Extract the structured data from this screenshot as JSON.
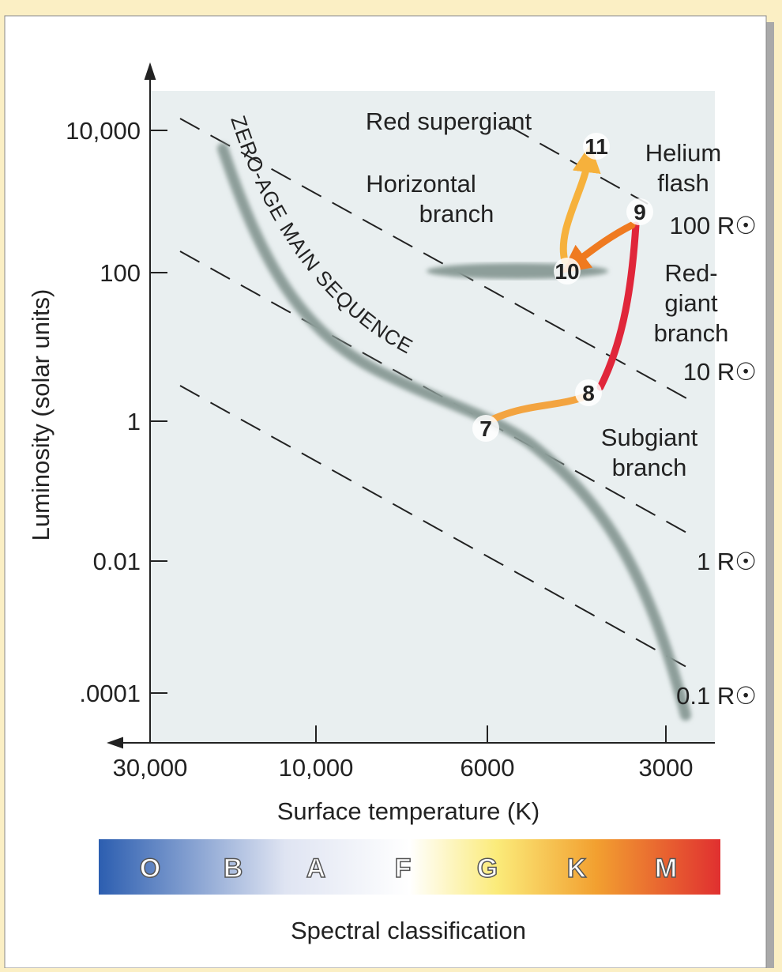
{
  "y_axis": {
    "label": "Luminosity (solar units)",
    "ticks": [
      "10,000",
      "100",
      "1",
      "0.01",
      ".0001"
    ]
  },
  "x_axis": {
    "label": "Surface temperature (K)",
    "ticks": [
      "30,000",
      "10,000",
      "6000",
      "3000"
    ]
  },
  "spectral": {
    "label": "Spectral classification",
    "classes": [
      "O",
      "B",
      "A",
      "F",
      "G",
      "K",
      "M"
    ]
  },
  "main_sequence_label": "ZERO-AGE MAIN SEQUENCE",
  "regions": [
    {
      "lines": [
        "Red supergiant"
      ]
    },
    {
      "lines": [
        "Horizontal",
        "branch"
      ]
    },
    {
      "lines": [
        "Helium",
        "flash"
      ]
    },
    {
      "lines": [
        "Red-",
        "giant",
        "branch"
      ]
    },
    {
      "lines": [
        "Subgiant",
        "branch"
      ]
    }
  ],
  "radius_labels": [
    "100 R☉",
    "10 R☉",
    "1 R☉",
    "0.1 R☉"
  ],
  "stages": [
    "7",
    "8",
    "9",
    "10",
    "11"
  ]
}
